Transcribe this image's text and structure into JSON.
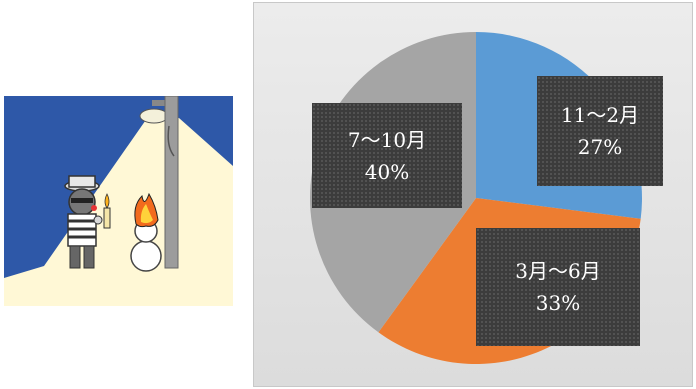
{
  "chart_data": {
    "type": "pie",
    "start_angle_deg": 0,
    "slices": [
      {
        "category": "11～2月",
        "value": 27,
        "value_label": "27%",
        "color": "#5b9bd5"
      },
      {
        "category": "3月～6月",
        "value": 33,
        "value_label": "33%",
        "color": "#ed7d31"
      },
      {
        "category": "7～10月",
        "value": 40,
        "value_label": "40%",
        "color": "#a5a5a5"
      }
    ],
    "data_label_style": "dark-box",
    "legend": "none",
    "background": "#e3e3e3"
  }
}
